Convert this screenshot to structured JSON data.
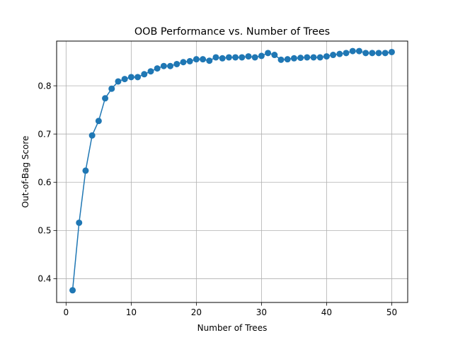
{
  "chart_data": {
    "type": "line",
    "title": "OOB Performance vs. Number of Trees",
    "xlabel": "Number of Trees",
    "ylabel": "Out-of-Bag Score",
    "xlim": [
      -1.45,
      52.45
    ],
    "ylim": [
      0.3507,
      0.8927
    ],
    "xticks": [
      0,
      10,
      20,
      30,
      40,
      50
    ],
    "yticks": [
      0.4,
      0.5,
      0.6,
      0.7,
      0.8
    ],
    "xtick_labels": [
      "0",
      "10",
      "20",
      "30",
      "40",
      "50"
    ],
    "ytick_labels": [
      "0.4",
      "0.5",
      "0.6",
      "0.7",
      "0.8"
    ],
    "grid": true,
    "color": "#1f77b4",
    "marker": "circle",
    "series": [
      {
        "x": [
          1,
          2,
          3,
          4,
          5,
          6,
          7,
          8,
          9,
          10,
          11,
          12,
          13,
          14,
          15,
          16,
          17,
          18,
          19,
          20,
          21,
          22,
          23,
          24,
          25,
          26,
          27,
          28,
          29,
          30,
          31,
          32,
          33,
          34,
          35,
          36,
          37,
          38,
          39,
          40,
          41,
          42,
          43,
          44,
          45,
          46,
          47,
          48,
          49,
          50
        ],
        "values": [
          0.376,
          0.516,
          0.624,
          0.697,
          0.727,
          0.774,
          0.794,
          0.809,
          0.814,
          0.818,
          0.818,
          0.824,
          0.83,
          0.836,
          0.841,
          0.841,
          0.845,
          0.849,
          0.851,
          0.855,
          0.855,
          0.852,
          0.859,
          0.857,
          0.859,
          0.859,
          0.859,
          0.861,
          0.859,
          0.862,
          0.868,
          0.864,
          0.854,
          0.855,
          0.857,
          0.858,
          0.859,
          0.859,
          0.859,
          0.861,
          0.864,
          0.866,
          0.868,
          0.872,
          0.872,
          0.868,
          0.868,
          0.868,
          0.868,
          0.87
        ]
      }
    ]
  }
}
